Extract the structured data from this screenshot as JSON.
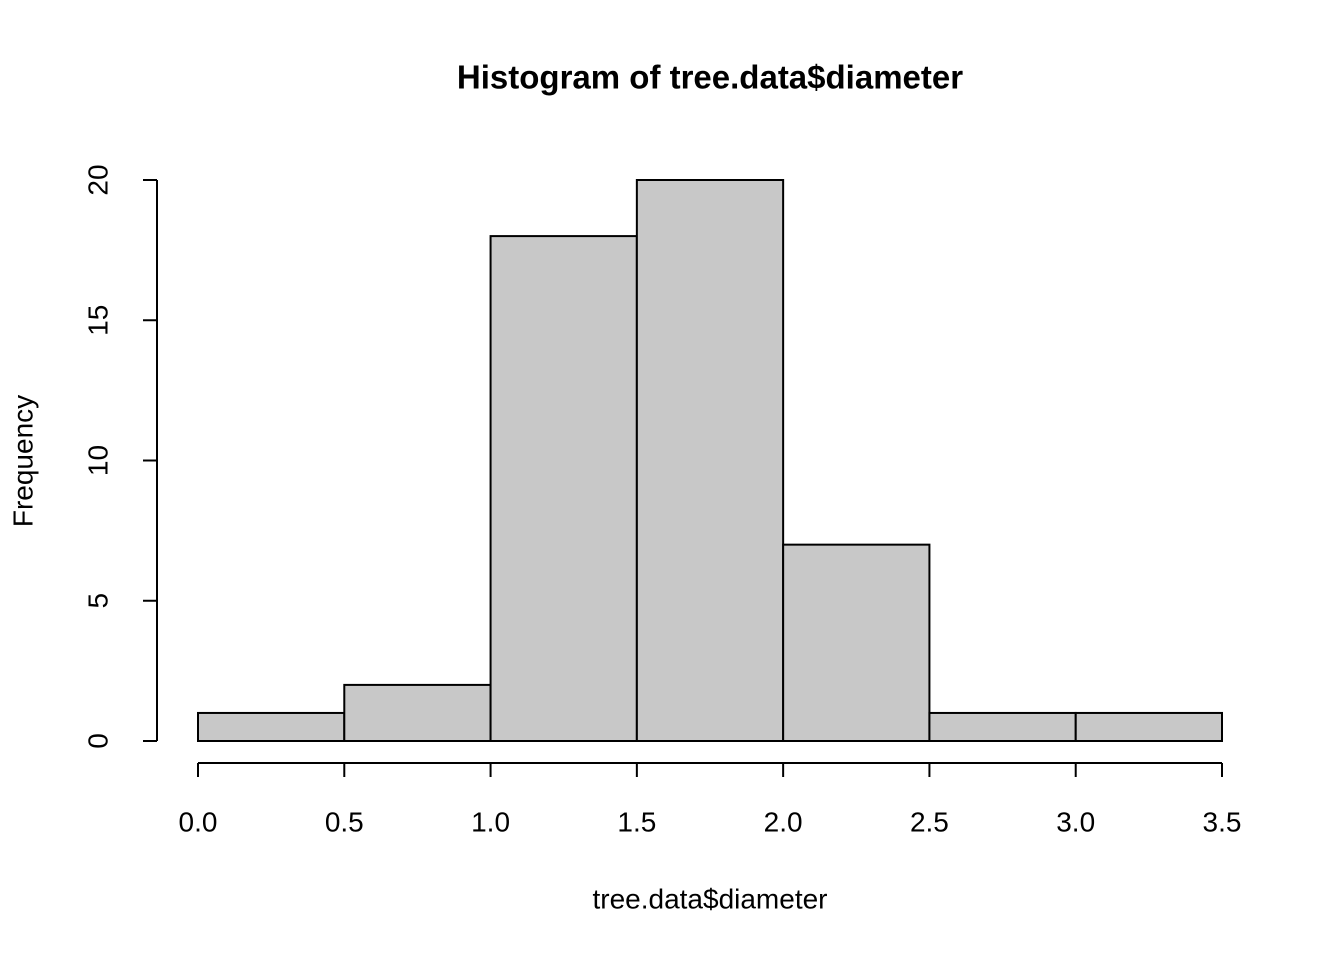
{
  "chart_data": {
    "type": "histogram",
    "title": "Histogram of tree.data$diameter",
    "x_label": "tree.data$diameter",
    "y_label": "Frequency",
    "bins": [
      0,
      0.5,
      1,
      1.5,
      2,
      2.5,
      3,
      3.5
    ],
    "counts": [
      1,
      2,
      18,
      20,
      7,
      1,
      1
    ],
    "color": "#c8c8c8",
    "xlim": [
      0,
      3.5
    ],
    "xticks": [
      {
        "value": 0,
        "label": "0.0"
      },
      0.5,
      {
        "value": 1,
        "label": "1.0"
      },
      1.5,
      {
        "value": 2,
        "label": "2.0"
      },
      2.5,
      {
        "value": 3,
        "label": "3.0"
      },
      3.5
    ],
    "ylim": [
      0,
      20
    ],
    "yticks": [
      0,
      5,
      10,
      15,
      20
    ],
    "grid": false
  }
}
